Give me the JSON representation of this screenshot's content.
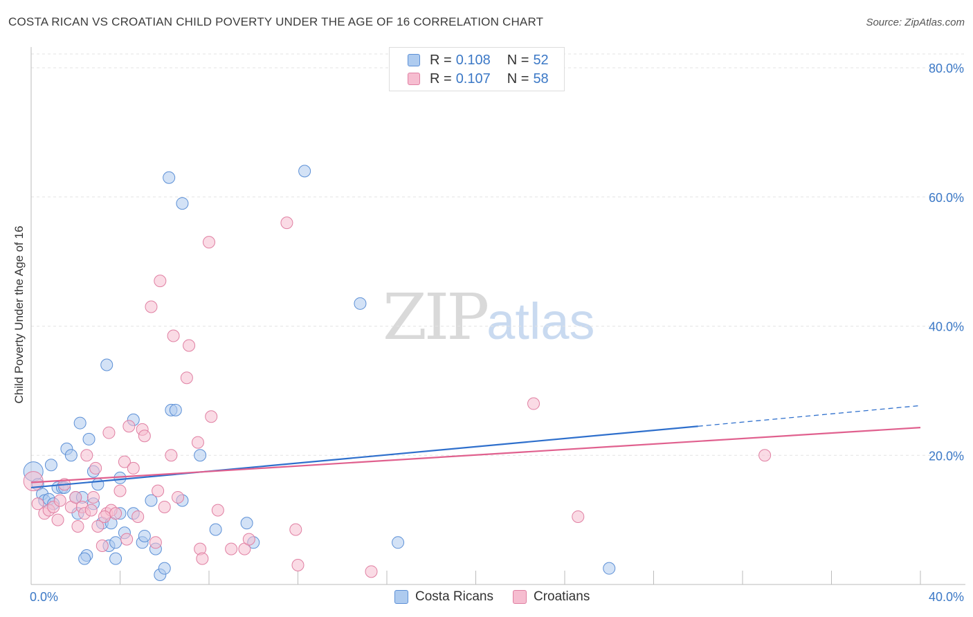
{
  "header": {
    "title": "COSTA RICAN VS CROATIAN CHILD POVERTY UNDER THE AGE OF 16 CORRELATION CHART",
    "source": "Source: ZipAtlas.com"
  },
  "watermark": {
    "zip": "ZIP",
    "atlas": "atlas"
  },
  "legend": {
    "rows": [
      {
        "r_label": "R =",
        "r_value": "0.108",
        "n_label": "N =",
        "n_value": "52"
      },
      {
        "r_label": "R =",
        "r_value": "0.107",
        "n_label": "N =",
        "n_value": "58"
      }
    ],
    "bottom": [
      "Costa Ricans",
      "Croatians"
    ]
  },
  "colors": {
    "blue_fill": "#aecbef",
    "blue_stroke": "#5b8fd6",
    "blue_line": "#2e6fcc",
    "pink_fill": "#f6bdd0",
    "pink_stroke": "#e07fa2",
    "pink_line": "#e0608e",
    "axis_label": "#3b78c6",
    "grid": "#e3e3e3"
  },
  "chart_data": {
    "type": "scatter",
    "title": "COSTA RICAN VS CROATIAN CHILD POVERTY UNDER THE AGE OF 16 CORRELATION CHART",
    "xlabel": "",
    "ylabel": "Child Poverty Under the Age of 16",
    "xlim": [
      0,
      40
    ],
    "ylim": [
      0,
      80
    ],
    "x_tick_labels": [
      "0.0%",
      "40.0%"
    ],
    "y_tick_labels": [
      "20.0%",
      "40.0%",
      "60.0%",
      "80.0%"
    ],
    "y_ticks": [
      20,
      40,
      60,
      80
    ],
    "series": [
      {
        "name": "Costa Ricans",
        "r": 0.108,
        "n": 52,
        "trend": {
          "x0": 0,
          "y0": 15.0,
          "x1": 30,
          "y1": 24.5,
          "dash_to_x": 40,
          "dash_to_y": 27.7
        },
        "points": [
          [
            0.1,
            17.5
          ],
          [
            0.3,
            15.5
          ],
          [
            0.5,
            14.0
          ],
          [
            0.6,
            13.0
          ],
          [
            0.8,
            13.2
          ],
          [
            0.9,
            18.5
          ],
          [
            1.0,
            12.5
          ],
          [
            1.2,
            15.0
          ],
          [
            1.4,
            15.0
          ],
          [
            1.6,
            21.0
          ],
          [
            1.8,
            20.0
          ],
          [
            2.0,
            13.5
          ],
          [
            2.1,
            11.0
          ],
          [
            2.3,
            13.5
          ],
          [
            2.2,
            25.0
          ],
          [
            2.6,
            22.5
          ],
          [
            2.8,
            17.5
          ],
          [
            3.0,
            15.5
          ],
          [
            3.2,
            9.5
          ],
          [
            3.4,
            34.0
          ],
          [
            3.5,
            6.0
          ],
          [
            3.6,
            9.5
          ],
          [
            3.8,
            4.0
          ],
          [
            4.0,
            11.0
          ],
          [
            4.0,
            16.5
          ],
          [
            4.2,
            8.0
          ],
          [
            4.6,
            25.5
          ],
          [
            4.6,
            11.0
          ],
          [
            5.0,
            6.5
          ],
          [
            5.1,
            7.5
          ],
          [
            5.4,
            13.0
          ],
          [
            5.6,
            5.5
          ],
          [
            5.8,
            1.5
          ],
          [
            6.2,
            63.0
          ],
          [
            6.3,
            27.0
          ],
          [
            6.5,
            27.0
          ],
          [
            6.8,
            13.0
          ],
          [
            6.8,
            59.0
          ],
          [
            7.6,
            20.0
          ],
          [
            8.3,
            8.5
          ],
          [
            9.7,
            9.5
          ],
          [
            10.0,
            6.5
          ],
          [
            12.3,
            64.0
          ],
          [
            14.8,
            43.5
          ],
          [
            16.5,
            6.5
          ],
          [
            2.5,
            4.5
          ],
          [
            2.4,
            4.0
          ],
          [
            1.5,
            15.0
          ],
          [
            3.8,
            6.5
          ],
          [
            2.8,
            12.5
          ],
          [
            6.0,
            2.5
          ],
          [
            26.0,
            2.5
          ]
        ]
      },
      {
        "name": "Croatians",
        "r": 0.107,
        "n": 58,
        "trend": {
          "x0": 0,
          "y0": 15.8,
          "x1": 40,
          "y1": 24.3
        },
        "points": [
          [
            0.1,
            16.0
          ],
          [
            0.3,
            12.5
          ],
          [
            0.6,
            11.0
          ],
          [
            0.8,
            11.5
          ],
          [
            1.0,
            12.0
          ],
          [
            1.2,
            10.0
          ],
          [
            1.3,
            13.0
          ],
          [
            1.5,
            15.5
          ],
          [
            1.8,
            12.0
          ],
          [
            2.0,
            13.5
          ],
          [
            2.1,
            9.0
          ],
          [
            2.3,
            12.0
          ],
          [
            2.4,
            11.0
          ],
          [
            2.5,
            20.0
          ],
          [
            2.7,
            11.5
          ],
          [
            2.8,
            13.5
          ],
          [
            2.9,
            18.0
          ],
          [
            3.0,
            9.0
          ],
          [
            3.2,
            6.0
          ],
          [
            3.4,
            11.0
          ],
          [
            3.5,
            23.5
          ],
          [
            3.6,
            11.5
          ],
          [
            3.8,
            11.0
          ],
          [
            4.0,
            14.5
          ],
          [
            4.2,
            19.0
          ],
          [
            4.3,
            7.0
          ],
          [
            4.4,
            24.5
          ],
          [
            4.6,
            18.0
          ],
          [
            4.8,
            10.5
          ],
          [
            5.0,
            24.0
          ],
          [
            5.1,
            23.0
          ],
          [
            5.4,
            43.0
          ],
          [
            5.6,
            6.5
          ],
          [
            5.8,
            47.0
          ],
          [
            5.7,
            14.5
          ],
          [
            6.0,
            12.0
          ],
          [
            6.3,
            20.0
          ],
          [
            6.4,
            38.5
          ],
          [
            6.6,
            13.5
          ],
          [
            7.0,
            32.0
          ],
          [
            7.1,
            37.0
          ],
          [
            7.5,
            22.0
          ],
          [
            7.6,
            5.5
          ],
          [
            7.7,
            4.0
          ],
          [
            8.0,
            53.0
          ],
          [
            8.1,
            26.0
          ],
          [
            8.4,
            11.5
          ],
          [
            9.0,
            5.5
          ],
          [
            9.6,
            5.5
          ],
          [
            9.8,
            7.0
          ],
          [
            11.5,
            56.0
          ],
          [
            11.9,
            8.5
          ],
          [
            12.0,
            3.0
          ],
          [
            15.3,
            2.0
          ],
          [
            22.6,
            28.0
          ],
          [
            24.6,
            10.5
          ],
          [
            33.0,
            20.0
          ],
          [
            3.3,
            10.5
          ]
        ]
      }
    ]
  }
}
